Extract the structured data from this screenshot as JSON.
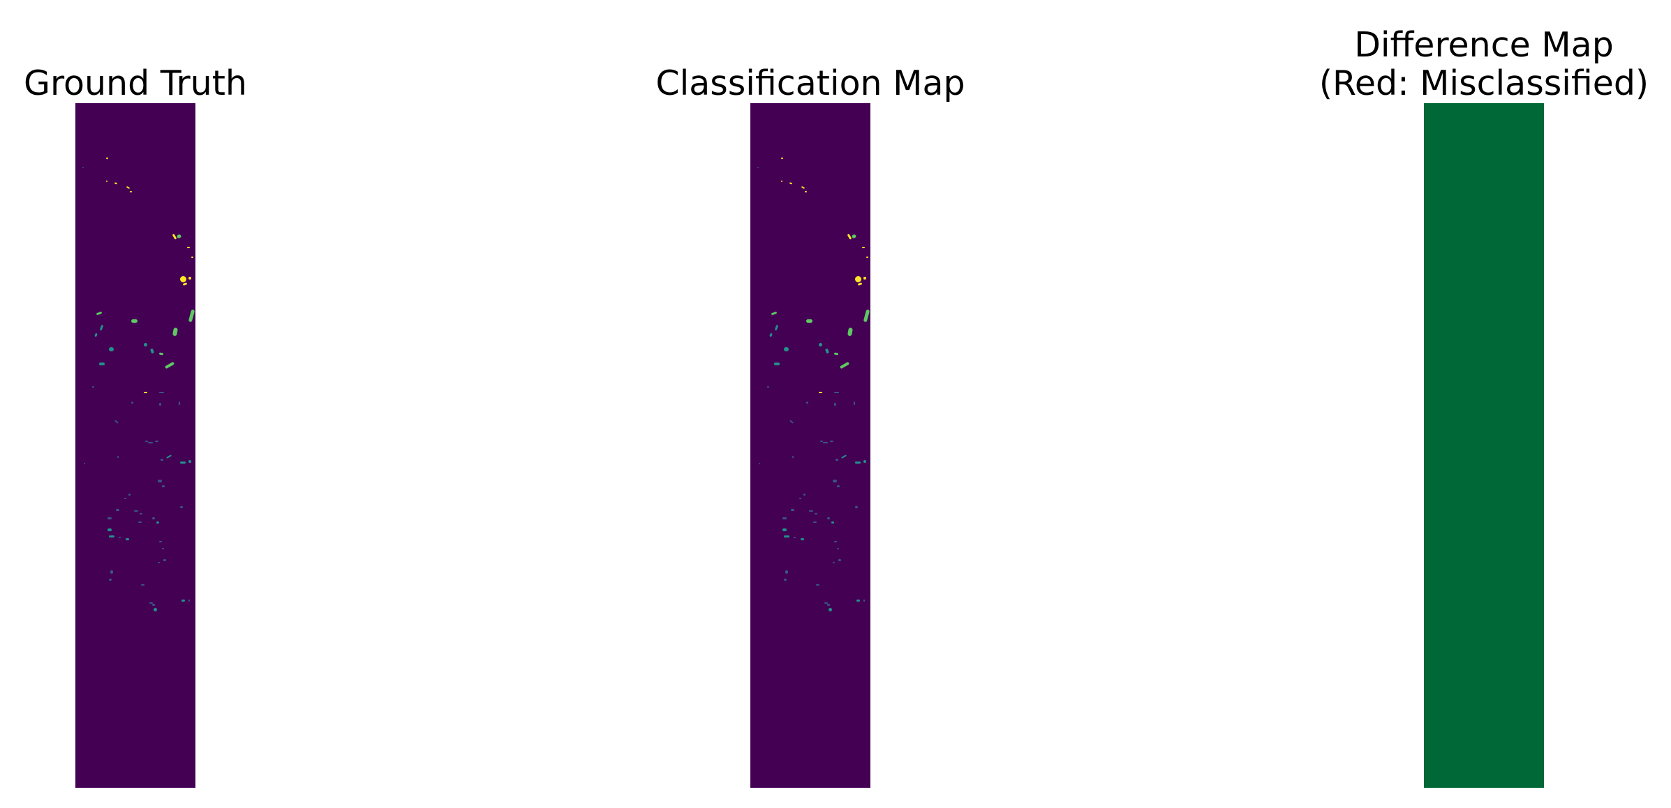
{
  "chart_data": [
    {
      "type": "heatmap",
      "title": "Ground Truth",
      "axis": "off",
      "colormap": "viridis",
      "background_color": "#440154",
      "class_colors": [
        "#3b528b",
        "#21918c",
        "#5ec962",
        "#fde725"
      ]
    },
    {
      "type": "heatmap",
      "title": "Classification Map",
      "axis": "off",
      "colormap": "viridis",
      "background_color": "#440154",
      "class_colors": [
        "#3b528b",
        "#21918c",
        "#5ec962",
        "#fde725"
      ]
    },
    {
      "type": "heatmap",
      "title": "Difference Map\n(Red: Misclassified)",
      "axis": "off",
      "colormap": "RdYlGn",
      "fill_color": "#006837",
      "misclassified_pixels": 0
    }
  ]
}
